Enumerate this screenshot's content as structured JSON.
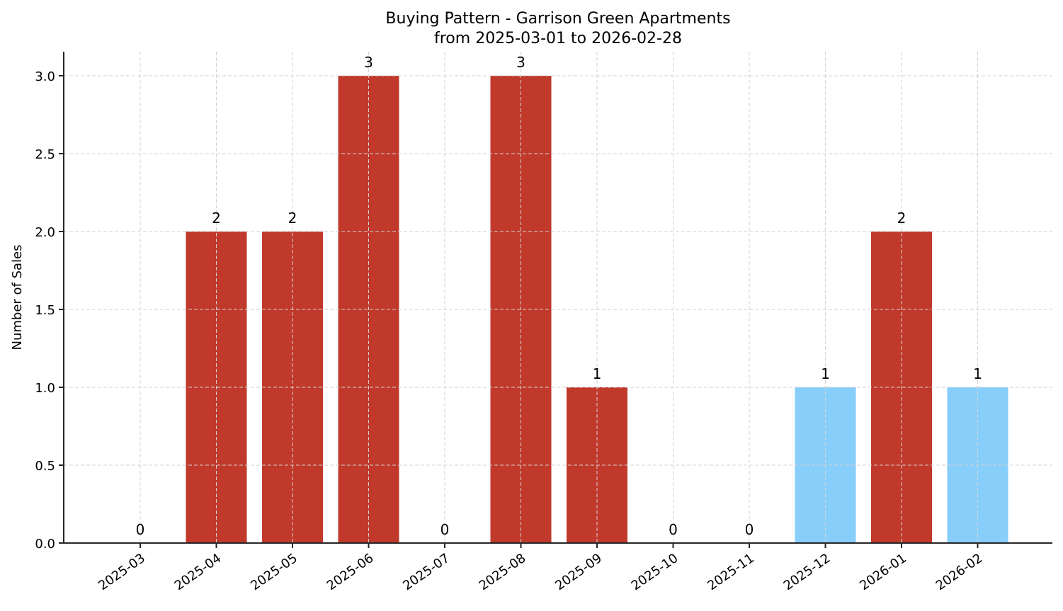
{
  "chart_data": {
    "type": "bar",
    "title": "Buying Pattern - Garrison Green Apartments",
    "subtitle": "from 2025-03-01 to 2026-02-28",
    "xlabel": "",
    "ylabel": "Number of Sales",
    "categories": [
      "2025-03",
      "2025-04",
      "2025-05",
      "2025-06",
      "2025-07",
      "2025-08",
      "2025-09",
      "2025-10",
      "2025-11",
      "2025-12",
      "2026-01",
      "2026-02"
    ],
    "values": [
      0,
      2,
      2,
      3,
      0,
      3,
      1,
      0,
      0,
      1,
      2,
      1
    ],
    "bar_colors": [
      "#C0392B",
      "#C0392B",
      "#C0392B",
      "#C0392B",
      "#C0392B",
      "#C0392B",
      "#C0392B",
      "#C0392B",
      "#C0392B",
      "#87CEFA",
      "#C0392B",
      "#87CEFA"
    ],
    "value_labels": [
      "0",
      "2",
      "2",
      "3",
      "0",
      "3",
      "1",
      "0",
      "0",
      "1",
      "2",
      "1"
    ],
    "ylim": [
      0,
      3.15
    ],
    "yticks": [
      0.0,
      0.5,
      1.0,
      1.5,
      2.0,
      2.5,
      3.0
    ],
    "ytick_labels": [
      "0.0",
      "0.5",
      "1.0",
      "1.5",
      "2.0",
      "2.5",
      "3.0"
    ],
    "grid": true,
    "grid_style": "dashed",
    "legend": null,
    "x_tick_rotation": 35
  },
  "colors": {
    "primary_bar": "#C0392B",
    "highlight_bar": "#87CEFA",
    "grid": "#d3d3d3",
    "axis": "#262626"
  }
}
